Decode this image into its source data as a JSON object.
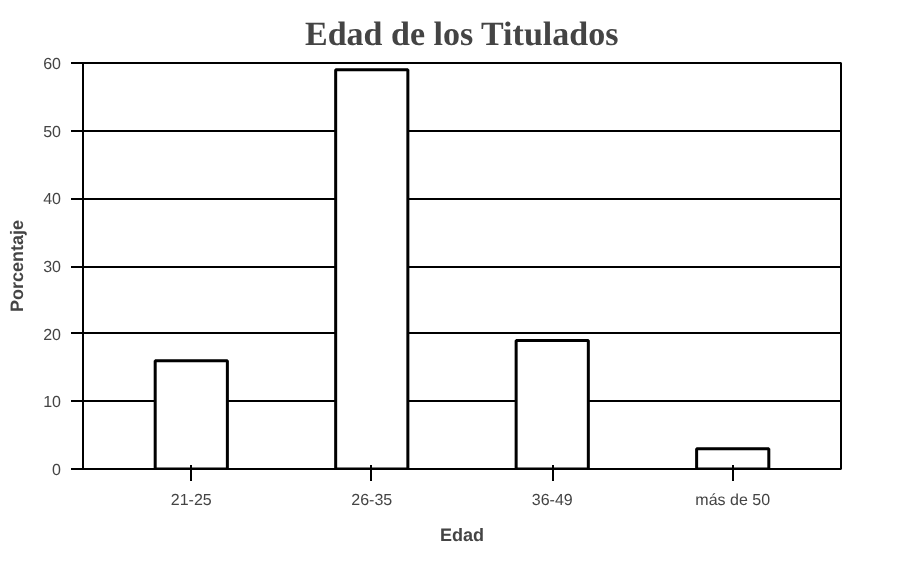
{
  "chart_data": {
    "type": "bar",
    "title": "Edad de los Titulados",
    "xlabel": "Edad",
    "ylabel": "Porcentaje",
    "categories": [
      "21-25",
      "26-35",
      "36-49",
      "más de 50"
    ],
    "values": [
      16,
      59,
      19,
      3
    ],
    "color": "#ffffff",
    "ylim": [
      0,
      60
    ],
    "yticks": [
      0,
      10,
      20,
      30,
      40,
      50,
      60
    ],
    "grid": "y"
  }
}
